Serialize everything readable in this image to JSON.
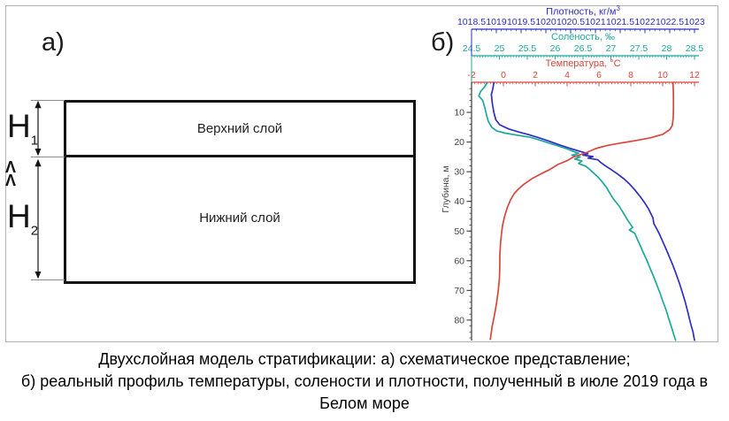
{
  "caption": {
    "line1": "Двухслойная модель стратификации: а) схематическое представление;",
    "line2": "б) реальный профиль температуры, солености и плотности, полученный в июле 2019 года в",
    "line3": "Белом море"
  },
  "panel_a": {
    "label": "а)",
    "upper_layer_label": "Верхний слой",
    "lower_layer_label": "Нижний слой",
    "h1": {
      "base": "H",
      "sub": "1"
    },
    "h2": {
      "base": "H",
      "sub": "2"
    },
    "much_less_carets": [
      "Λ",
      "Λ"
    ]
  },
  "panel_b": {
    "label": "б)"
  },
  "chart_data": {
    "type": "line",
    "title": "",
    "ylabel": "Глубина, м",
    "depth_axis": {
      "label": "Глубина, м",
      "min": 0,
      "max": 86.8,
      "major_ticks": [
        10,
        20,
        30,
        40,
        50,
        60,
        70,
        80
      ],
      "minor_step": 2
    },
    "series": [
      {
        "name": "Плотность",
        "axis_title": "Плотность, кг/м",
        "axis_title_sup": "3",
        "color": "#2e2ec4",
        "axis": {
          "min": 1018.5,
          "max": 1023,
          "ticks": [
            1018.5,
            1019,
            1019.5,
            1020,
            1020.5,
            1021,
            1021.5,
            1022,
            1022.5,
            1023
          ],
          "minor_step": 0.1
        },
        "points": [
          [
            1018.95,
            0
          ],
          [
            1018.93,
            2
          ],
          [
            1018.9,
            4
          ],
          [
            1018.92,
            7
          ],
          [
            1018.95,
            10
          ],
          [
            1018.99,
            12.5
          ],
          [
            1019.07,
            14.2
          ],
          [
            1019.25,
            15.6
          ],
          [
            1019.45,
            16.6
          ],
          [
            1019.65,
            17.5
          ],
          [
            1019.85,
            18.5
          ],
          [
            1020.05,
            19.6
          ],
          [
            1020.25,
            20.8
          ],
          [
            1020.5,
            22.2
          ],
          [
            1020.7,
            23.2
          ],
          [
            1020.85,
            23.9
          ],
          [
            1020.75,
            24.4
          ],
          [
            1020.95,
            24.9
          ],
          [
            1020.85,
            25.4
          ],
          [
            1021.05,
            26.0
          ],
          [
            1021.1,
            26.8
          ],
          [
            1021.2,
            28.0
          ],
          [
            1021.32,
            29.3
          ],
          [
            1021.45,
            30.8
          ],
          [
            1021.57,
            32.3
          ],
          [
            1021.68,
            34.0
          ],
          [
            1021.79,
            36.0
          ],
          [
            1021.9,
            38.3
          ],
          [
            1022.0,
            40.6
          ],
          [
            1022.08,
            42.8
          ],
          [
            1022.16,
            45.5
          ],
          [
            1022.18,
            47.5
          ],
          [
            1022.24,
            49.3
          ],
          [
            1022.3,
            51.3
          ],
          [
            1022.36,
            53.6
          ],
          [
            1022.43,
            56.2
          ],
          [
            1022.5,
            59.0
          ],
          [
            1022.57,
            61.8
          ],
          [
            1022.63,
            64.5
          ],
          [
            1022.7,
            67.8
          ],
          [
            1022.76,
            71.0
          ],
          [
            1022.82,
            74.3
          ],
          [
            1022.87,
            77.6
          ],
          [
            1022.92,
            81.0
          ],
          [
            1022.97,
            84.0
          ],
          [
            1023.0,
            86.8
          ]
        ]
      },
      {
        "name": "Солёность",
        "axis_title": "Солёность, ‰",
        "axis_title_sup": "",
        "color": "#1ca89b",
        "axis": {
          "min": 24.5,
          "max": 28.5,
          "ticks": [
            24.5,
            25,
            25.5,
            26,
            26.5,
            27,
            27.5,
            28,
            28.5
          ],
          "minor_step": 0.05
        },
        "points": [
          [
            24.78,
            0
          ],
          [
            24.73,
            1.5
          ],
          [
            24.66,
            3
          ],
          [
            24.63,
            4.5
          ],
          [
            24.7,
            6
          ],
          [
            24.74,
            8.5
          ],
          [
            24.77,
            11
          ],
          [
            24.8,
            13
          ],
          [
            24.86,
            15
          ],
          [
            24.95,
            16.2
          ],
          [
            25.1,
            17.0
          ],
          [
            25.35,
            17.8
          ],
          [
            25.55,
            18.4
          ],
          [
            25.7,
            19.2
          ],
          [
            25.88,
            20.3
          ],
          [
            26.05,
            21.3
          ],
          [
            26.2,
            22.2
          ],
          [
            26.33,
            23.2
          ],
          [
            26.42,
            23.8
          ],
          [
            26.3,
            24.4
          ],
          [
            26.45,
            25.0
          ],
          [
            26.35,
            25.7
          ],
          [
            26.48,
            26.4
          ],
          [
            26.42,
            27.2
          ],
          [
            26.55,
            28.2
          ],
          [
            26.63,
            29.4
          ],
          [
            26.7,
            30.6
          ],
          [
            26.78,
            32.0
          ],
          [
            26.85,
            33.6
          ],
          [
            26.92,
            35.3
          ],
          [
            26.98,
            37.2
          ],
          [
            27.05,
            39.3
          ],
          [
            27.15,
            41.6
          ],
          [
            27.22,
            43.8
          ],
          [
            27.3,
            46.3
          ],
          [
            27.39,
            48.8
          ],
          [
            27.33,
            49.6
          ],
          [
            27.43,
            50.8
          ],
          [
            27.48,
            53.0
          ],
          [
            27.53,
            55.0
          ],
          [
            27.58,
            57.2
          ],
          [
            27.64,
            59.6
          ],
          [
            27.7,
            62.4
          ],
          [
            27.76,
            65.0
          ],
          [
            27.82,
            68.0
          ],
          [
            27.88,
            70.8
          ],
          [
            27.93,
            73.6
          ],
          [
            27.99,
            76.6
          ],
          [
            28.04,
            79.6
          ],
          [
            28.09,
            82.6
          ],
          [
            28.13,
            85.0
          ],
          [
            28.16,
            86.8
          ]
        ]
      },
      {
        "name": "Температура",
        "axis_title": "Температура, °C",
        "axis_title_sup": "",
        "color": "#d8473d",
        "axis": {
          "min": -2,
          "max": 12,
          "ticks": [
            -2,
            0,
            2,
            4,
            6,
            8,
            10,
            12
          ],
          "minor_step": 0.2
        },
        "points": [
          [
            10.65,
            0
          ],
          [
            10.67,
            3
          ],
          [
            10.68,
            6
          ],
          [
            10.68,
            9
          ],
          [
            10.66,
            12
          ],
          [
            10.6,
            14.5
          ],
          [
            10.45,
            15.8
          ],
          [
            10.0,
            17.4
          ],
          [
            9.2,
            18.6
          ],
          [
            8.2,
            19.6
          ],
          [
            7.4,
            20.3
          ],
          [
            6.5,
            21.2
          ],
          [
            5.8,
            22.2
          ],
          [
            5.15,
            23.7
          ],
          [
            4.4,
            25.0
          ],
          [
            4.0,
            26.3
          ],
          [
            3.4,
            27.6
          ],
          [
            2.9,
            29.3
          ],
          [
            2.4,
            30.6
          ],
          [
            1.8,
            32.3
          ],
          [
            1.3,
            34.2
          ],
          [
            0.95,
            35.8
          ],
          [
            0.67,
            37.4
          ],
          [
            0.45,
            39.5
          ],
          [
            0.25,
            42.0
          ],
          [
            0.08,
            45.0
          ],
          [
            -0.05,
            48.0
          ],
          [
            -0.12,
            51.0
          ],
          [
            -0.18,
            54.0
          ],
          [
            -0.22,
            58.0
          ],
          [
            -0.23,
            62.0
          ],
          [
            -0.25,
            66.0
          ],
          [
            -0.32,
            70.0
          ],
          [
            -0.42,
            74.0
          ],
          [
            -0.55,
            78.0
          ],
          [
            -0.7,
            82.0
          ],
          [
            -0.82,
            86.5
          ]
        ]
      }
    ]
  }
}
